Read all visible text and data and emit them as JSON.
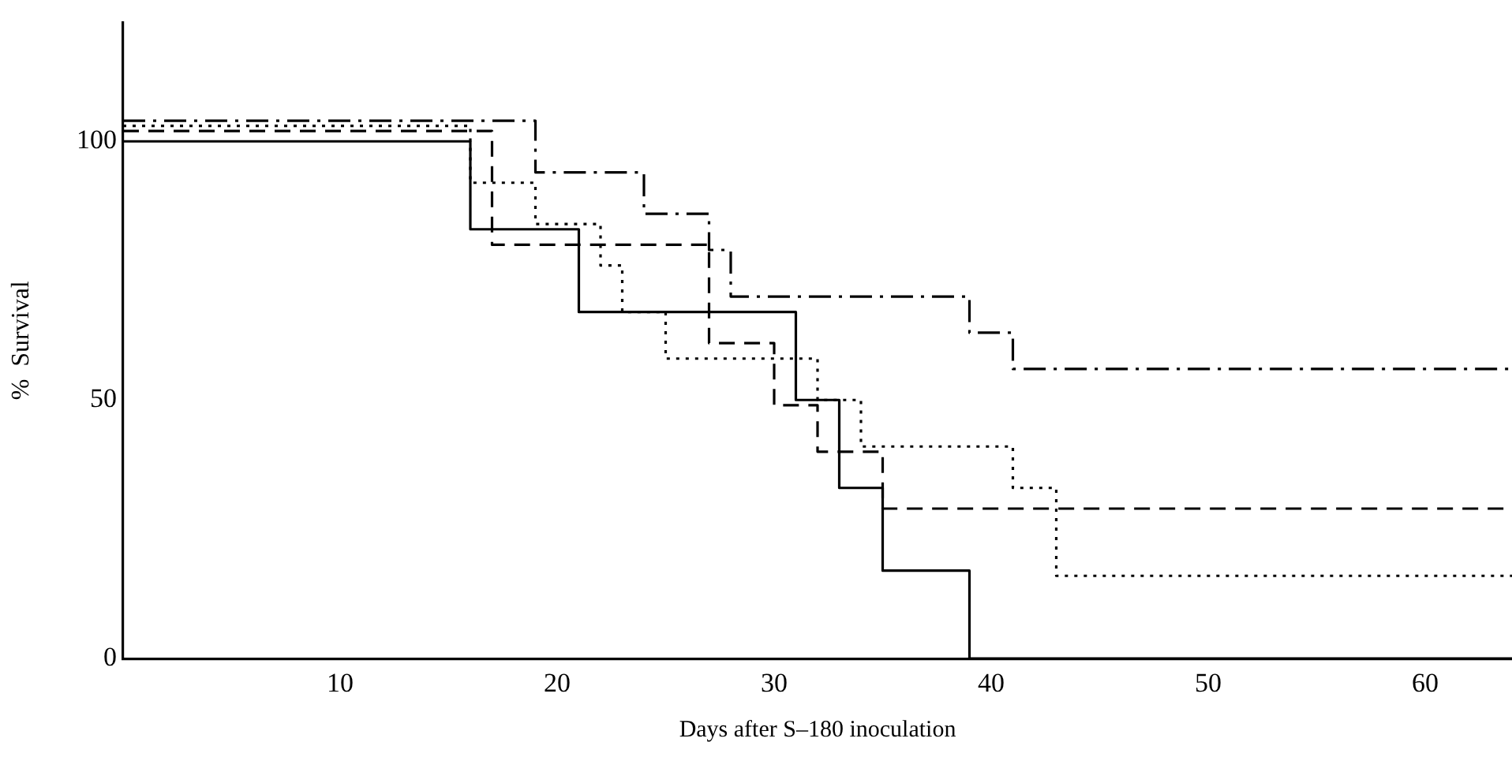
{
  "chart_data": {
    "type": "step",
    "xlabel": "Days after S–180 inoculation",
    "ylabel": "%  Survival",
    "xlim": [
      0,
      64
    ],
    "xticks": [
      10,
      20,
      30,
      40,
      50,
      60
    ],
    "ylim": [
      0,
      123
    ],
    "yticks": [
      0,
      50,
      100
    ],
    "grid": false,
    "legend": false,
    "marker": "none",
    "series": [
      {
        "color": "#000000",
        "line_style": "solid",
        "x": [
          0,
          16,
          21,
          31,
          33,
          35,
          39,
          64
        ],
        "values": [
          100,
          83,
          67,
          50,
          33,
          17,
          0,
          0
        ]
      },
      {
        "color": "#000000",
        "line_style": "dotted",
        "x": [
          0,
          16,
          19,
          22,
          23,
          25,
          32,
          34,
          41,
          43,
          64
        ],
        "values": [
          103,
          92,
          84,
          76,
          67,
          58,
          50,
          41,
          33,
          16,
          16
        ]
      },
      {
        "color": "#000000",
        "line_style": "dashed",
        "x": [
          0,
          17,
          27,
          30,
          32,
          35,
          64
        ],
        "values": [
          102,
          80,
          61,
          49,
          40,
          29,
          29
        ]
      },
      {
        "color": "#000000",
        "line_style": "dashdot",
        "x": [
          0,
          19,
          24,
          27,
          28,
          39,
          41,
          64
        ],
        "values": [
          104,
          94,
          86,
          79,
          70,
          63,
          56,
          56
        ]
      }
    ]
  }
}
